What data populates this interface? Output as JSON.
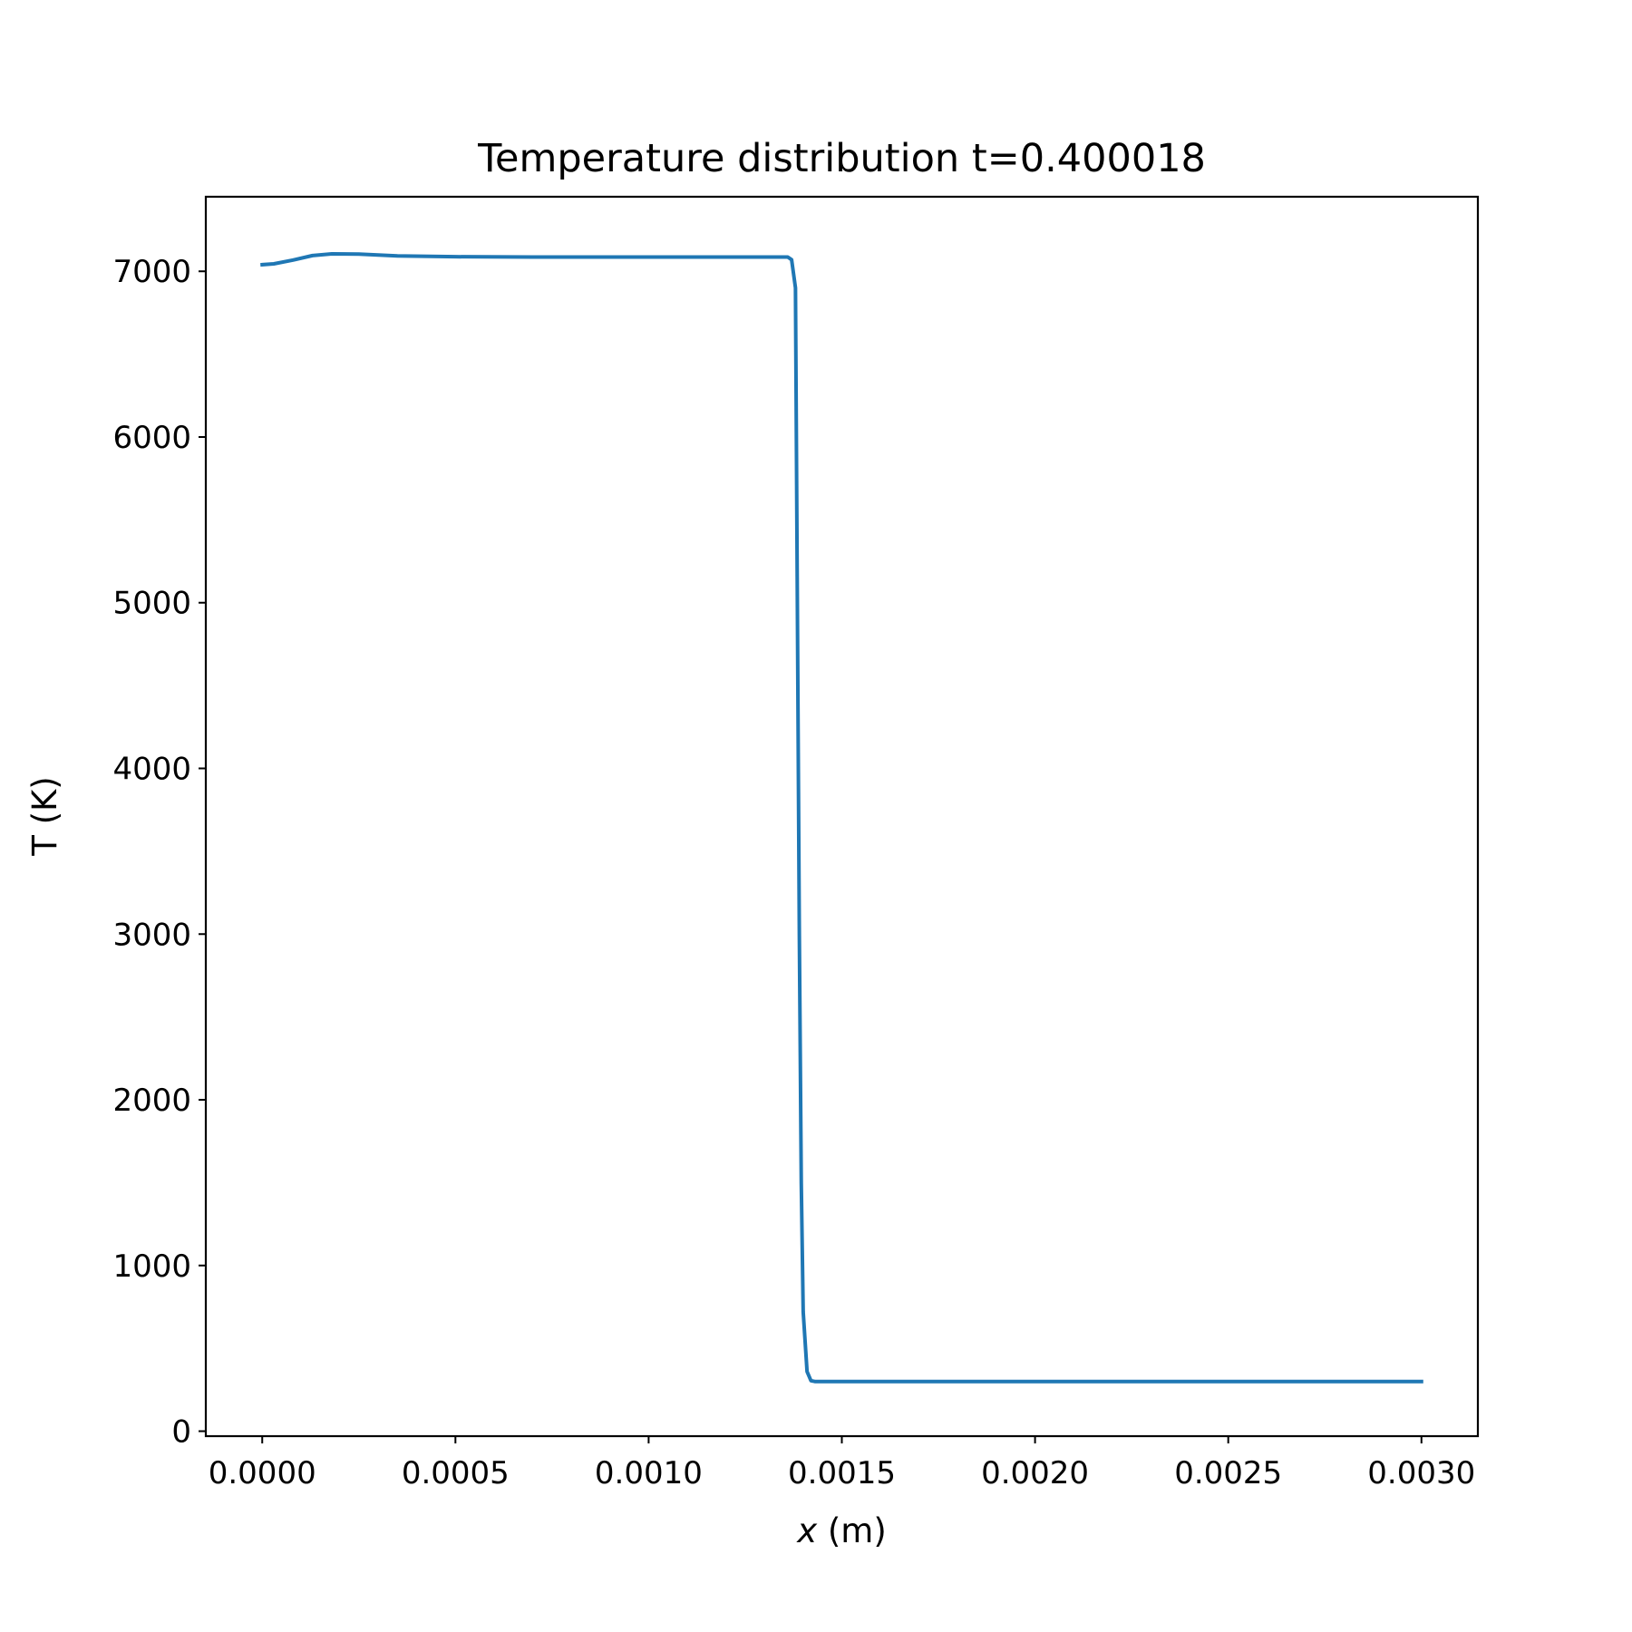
{
  "chart_data": {
    "type": "line",
    "title": "Temperature distribution t=0.400018",
    "xlabel": "x",
    "xlabel_unit": "(m)",
    "ylabel": "T (K)",
    "xlim": [
      -0.000146,
      0.003146
    ],
    "ylim": [
      -30,
      7450
    ],
    "x_ticks": [
      0,
      0.0005,
      0.001,
      0.0015,
      0.002,
      0.0025,
      0.003
    ],
    "x_tick_labels": [
      "0.0000",
      "0.0005",
      "0.0010",
      "0.0015",
      "0.0020",
      "0.0025",
      "0.0030"
    ],
    "y_ticks": [
      0,
      1000,
      2000,
      3000,
      4000,
      5000,
      6000,
      7000
    ],
    "y_tick_labels": [
      "0",
      "1000",
      "2000",
      "3000",
      "4000",
      "5000",
      "6000",
      "7000"
    ],
    "grid": false,
    "series": [
      {
        "color": "#1f77b4",
        "x": [
          0,
          3e-05,
          8e-05,
          0.00013,
          0.00018,
          0.00025,
          0.00035,
          0.0005,
          0.0007,
          0.001,
          0.00125,
          0.00136,
          0.00137,
          0.00138,
          0.00139,
          0.001395,
          0.0014,
          0.00141,
          0.00142,
          0.00143,
          0.00145,
          0.0016,
          0.002,
          0.0025,
          0.003
        ],
        "y": [
          7040,
          7045,
          7068,
          7095,
          7105,
          7104,
          7093,
          7088,
          7086,
          7086,
          7086,
          7086,
          7070,
          6900,
          3000,
          1500,
          720,
          360,
          305,
          300,
          300,
          300,
          300,
          300,
          300
        ]
      }
    ]
  }
}
